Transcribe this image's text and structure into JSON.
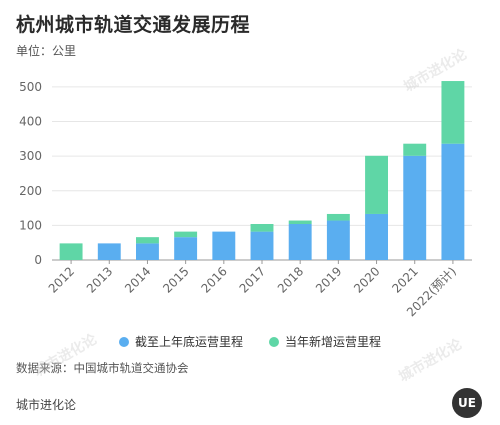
{
  "title": "杭州城市轨道交通发展历程",
  "unit_label": "单位：公里",
  "source": "数据来源：中国城市轨道交通协会",
  "brand": "城市进化论",
  "logo_text": "UE",
  "watermark": "城市进化论",
  "colors": {
    "cumulative": "#5aaef0",
    "new": "#5fd6a6",
    "grid": "#e6e6e6",
    "axis": "#999999",
    "tick": "#666666"
  },
  "chart_data": {
    "type": "bar",
    "stacked": true,
    "categories": [
      "2012",
      "2013",
      "2014",
      "2015",
      "2016",
      "2017",
      "2018",
      "2019",
      "2020",
      "2021",
      "2022(预计)"
    ],
    "series": [
      {
        "name": "截至上年底运营里程",
        "values": [
          0,
          48,
          48,
          66,
          82,
          82,
          104,
          114,
          133,
          301,
          336
        ]
      },
      {
        "name": "当年新增运营里程",
        "values": [
          48,
          0,
          18,
          16,
          0,
          22,
          10,
          19,
          168,
          35,
          181
        ]
      }
    ],
    "yticks": [
      0,
      100,
      200,
      300,
      400,
      500
    ],
    "ylim": [
      0,
      520
    ],
    "grid": true,
    "legend": "bottom"
  }
}
